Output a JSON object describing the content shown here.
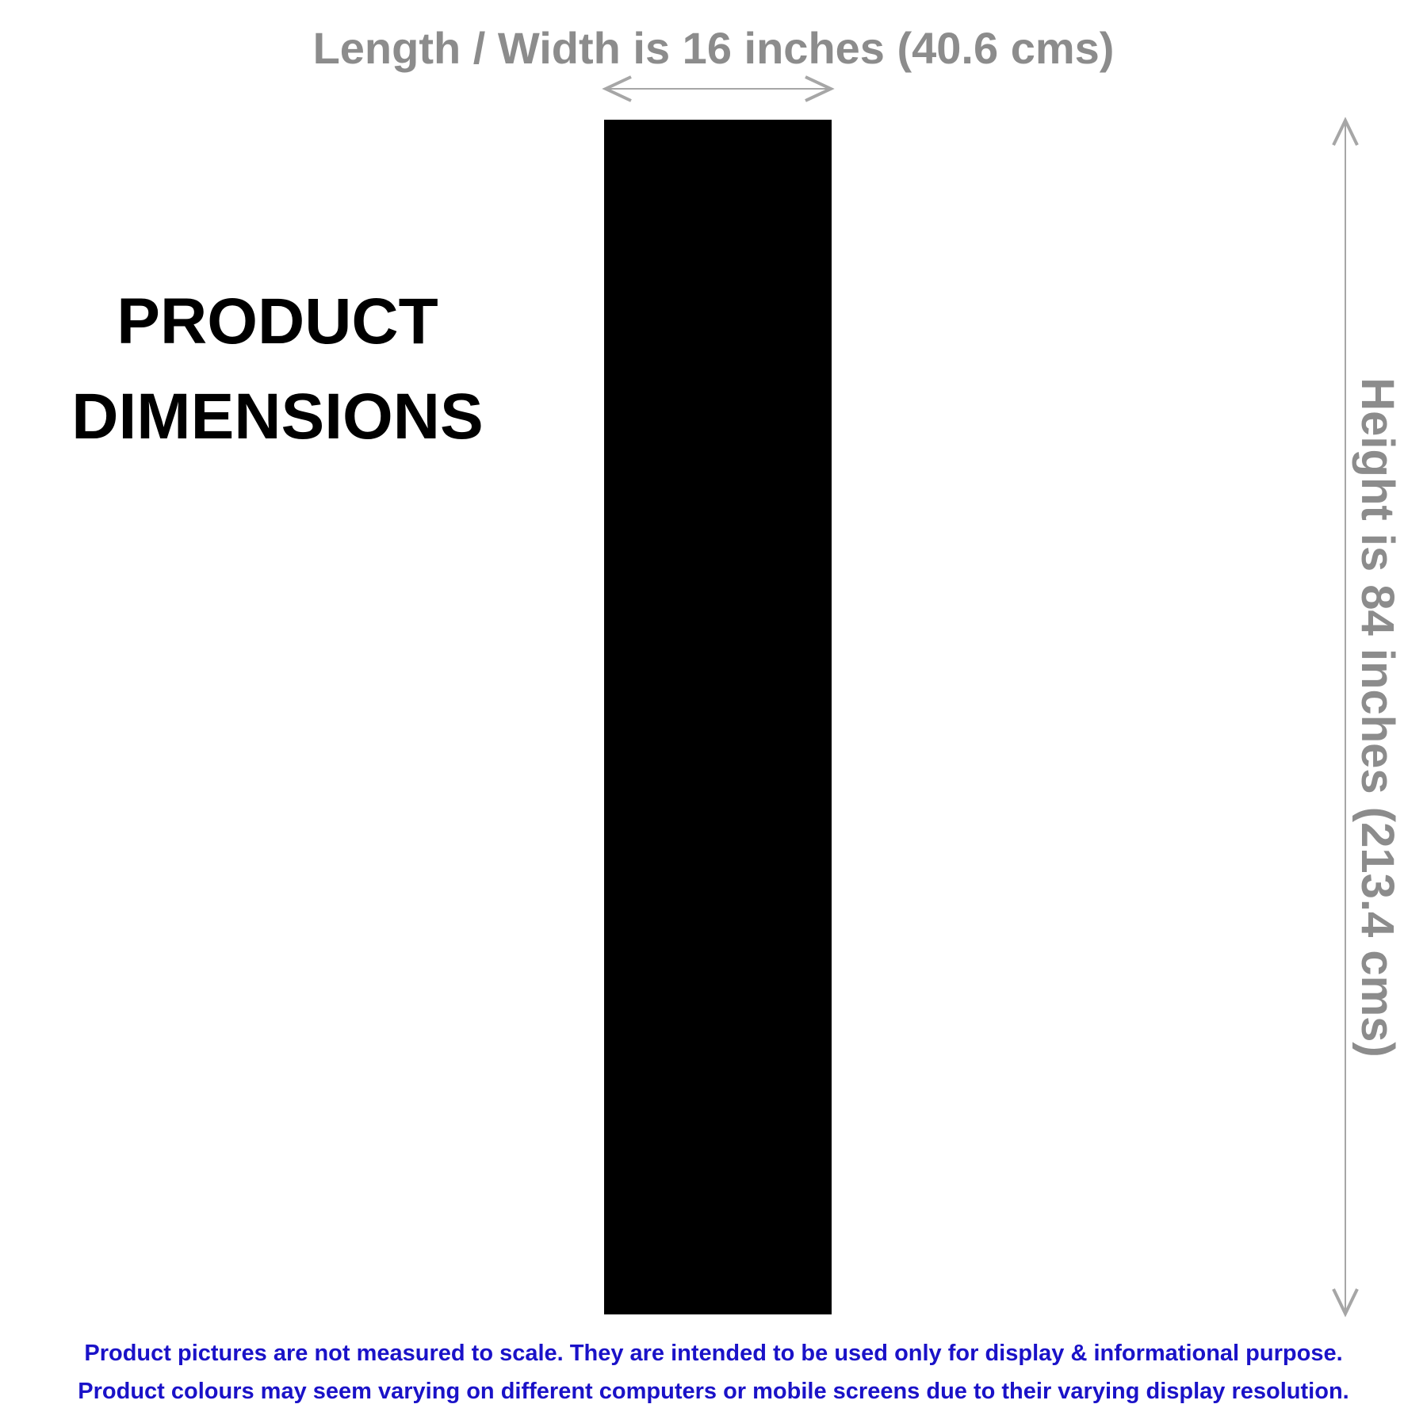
{
  "width_label": "Length / Width is 16 inches (40.6 cms)",
  "height_label": "Height is 84 inches (213.4 cms)",
  "title": {
    "line1": "PRODUCT",
    "line2": "DIMENSIONS"
  },
  "product": {
    "width_in": 16,
    "height_in": 84
  },
  "disclaimer": {
    "line1": "Product pictures are not measured to scale. They are intended to be used only for display & informational purpose.",
    "line2": "Product colours may seem varying on different computers or mobile screens due to their varying display resolution."
  },
  "colors": {
    "label_gray": "#8c8c8c",
    "arrow_gray": "#a6a6a6",
    "product": "#000000",
    "title": "#000000",
    "disclaimer_blue": "#1a12c8"
  }
}
